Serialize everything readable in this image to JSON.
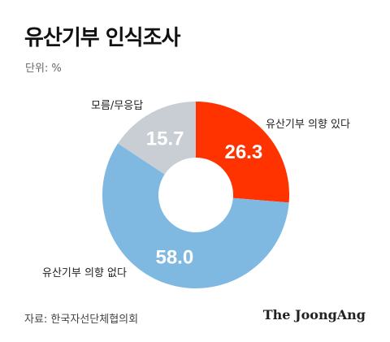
{
  "title": "유산기부 인식조사",
  "unit_label": "단위: %",
  "source": "자료: 한국자선단체협의회",
  "brand": "The JoongAng",
  "chart_data": {
    "type": "pie",
    "title": "유산기부 인식조사",
    "unit": "%",
    "donut": true,
    "start": "12 o'clock, clockwise",
    "slices": [
      {
        "label": "유산기부 의향 있다",
        "value": 26.3,
        "color": "#ff3300"
      },
      {
        "label": "유산기부 의향 없다",
        "value": 58.0,
        "color": "#7fb9e1"
      },
      {
        "label": "모름/무응답",
        "value": 15.7,
        "color": "#c8ced3"
      }
    ]
  }
}
